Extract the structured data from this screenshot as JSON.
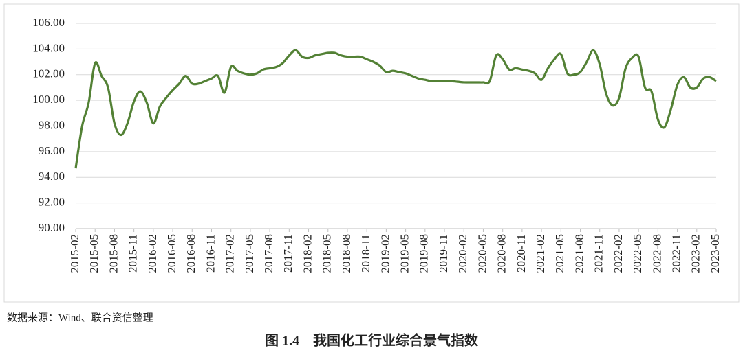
{
  "chart_data": {
    "type": "line",
    "title": "图 1.4　我国化工行业综合景气指数",
    "source": "数据来源：Wind、联合资信整理",
    "categories": [
      "2015-02",
      null,
      null,
      "2015-05",
      null,
      null,
      "2015-08",
      null,
      null,
      "2015-11",
      null,
      null,
      "2016-02",
      null,
      null,
      "2016-05",
      null,
      null,
      "2016-08",
      null,
      null,
      "2016-11",
      null,
      null,
      "2017-02",
      null,
      null,
      "2017-05",
      null,
      null,
      "2017-08",
      null,
      null,
      "2017-11",
      null,
      null,
      "2018-02",
      null,
      null,
      "2018-05",
      null,
      null,
      "2018-08",
      null,
      null,
      "2018-11",
      null,
      null,
      "2019-02",
      null,
      null,
      "2019-05",
      null,
      null,
      "2019-08",
      null,
      null,
      "2019-11",
      null,
      null,
      "2020-02",
      null,
      null,
      "2020-05",
      null,
      null,
      "2020-08",
      null,
      null,
      "2020-11",
      null,
      null,
      "2021-02",
      null,
      null,
      "2021-05",
      null,
      null,
      "2021-08",
      null,
      null,
      "2021-11",
      null,
      null,
      "2022-02",
      null,
      null,
      "2022-05",
      null,
      null,
      "2022-08",
      null,
      null,
      "2022-11",
      null,
      null,
      "2023-02",
      null,
      null,
      "2023-05"
    ],
    "values": [
      94.7,
      98.0,
      99.8,
      102.9,
      101.9,
      101.0,
      98.2,
      97.3,
      98.2,
      99.9,
      100.7,
      99.8,
      98.2,
      99.5,
      100.2,
      100.8,
      101.3,
      101.9,
      101.3,
      101.3,
      101.5,
      101.7,
      101.9,
      100.6,
      102.6,
      102.3,
      102.1,
      102.0,
      102.1,
      102.4,
      102.5,
      102.6,
      102.9,
      103.5,
      103.9,
      103.4,
      103.3,
      103.5,
      103.6,
      103.7,
      103.7,
      103.5,
      103.4,
      103.4,
      103.4,
      103.2,
      103.0,
      102.7,
      102.2,
      102.3,
      102.2,
      102.1,
      101.9,
      101.7,
      101.6,
      101.5,
      101.5,
      101.5,
      101.5,
      101.45,
      101.4,
      101.4,
      101.4,
      101.4,
      101.5,
      103.5,
      103.2,
      102.4,
      102.5,
      102.4,
      102.3,
      102.1,
      101.6,
      102.5,
      103.2,
      103.6,
      102.1,
      102.0,
      102.2,
      103.0,
      103.9,
      102.8,
      100.5,
      99.6,
      100.2,
      102.5,
      103.3,
      103.4,
      101.0,
      100.7,
      98.5,
      97.9,
      99.3,
      101.2,
      101.8,
      101.0,
      101.0,
      101.7,
      101.8,
      101.5
    ],
    "color": "#538135",
    "ylim": [
      90,
      106
    ],
    "yticks": [
      {
        "value": 90,
        "label": "90.00"
      },
      {
        "value": 92,
        "label": "92.00"
      },
      {
        "value": 94,
        "label": "94.00"
      },
      {
        "value": 96,
        "label": "96.00"
      },
      {
        "value": 98,
        "label": "98.00"
      },
      {
        "value": 100,
        "label": "100.00"
      },
      {
        "value": 102,
        "label": "102.00"
      },
      {
        "value": 104,
        "label": "104.00"
      },
      {
        "value": 106,
        "label": "106.00"
      }
    ],
    "grid": true
  }
}
